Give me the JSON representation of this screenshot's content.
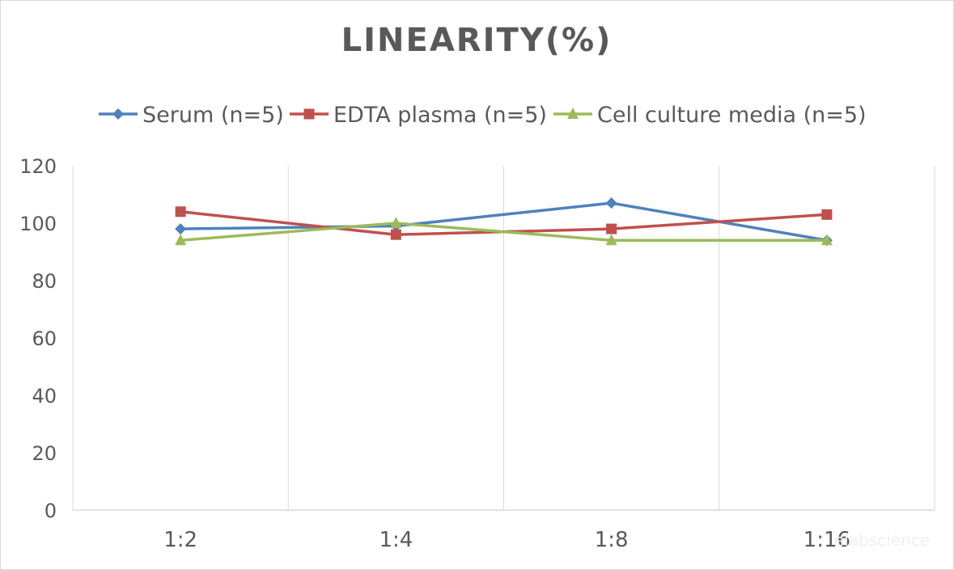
{
  "chart_data": {
    "type": "line",
    "title": "LINEARITY(%)",
    "xlabel": "",
    "ylabel": "",
    "categories": [
      "1:2",
      "1:4",
      "1:8",
      "1:16"
    ],
    "ylim": [
      0,
      120
    ],
    "yticks": [
      0,
      20,
      40,
      60,
      80,
      100,
      120
    ],
    "grid": "vertical",
    "legend_position": "top",
    "series": [
      {
        "name": "Serum (n=5)",
        "values": [
          98,
          99,
          107,
          94
        ],
        "color": "#4F81BD",
        "marker": "diamond"
      },
      {
        "name": "EDTA plasma (n=5)",
        "values": [
          104,
          96,
          98,
          103
        ],
        "color": "#C0504D",
        "marker": "square"
      },
      {
        "name": "Cell culture media (n=5)",
        "values": [
          94,
          100,
          94,
          94
        ],
        "color": "#9BBB59",
        "marker": "triangle"
      }
    ],
    "watermark": "elabscience"
  }
}
